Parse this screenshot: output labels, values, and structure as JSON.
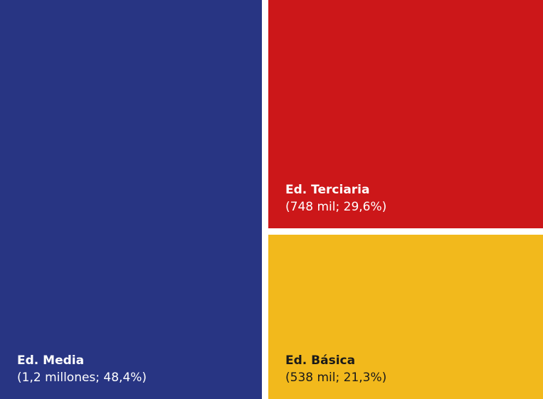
{
  "chart_data": {
    "type": "treemap",
    "items": [
      {
        "name": "Ed. Media",
        "value_text": "1,2 millones",
        "percent_text": "48,4%",
        "percent": 48.4,
        "color": "#283583",
        "text_color": "#ffffff"
      },
      {
        "name": "Ed. Terciaria",
        "value_text": "748 mil",
        "percent_text": "29,6%",
        "percent": 29.6,
        "color": "#cc1719",
        "text_color": "#ffffff"
      },
      {
        "name": "Ed. Básica",
        "value_text": "538 mil",
        "percent_text": "21,3%",
        "percent": 21.3,
        "color": "#f2b91c",
        "text_color": "#1a1a1a"
      }
    ]
  }
}
